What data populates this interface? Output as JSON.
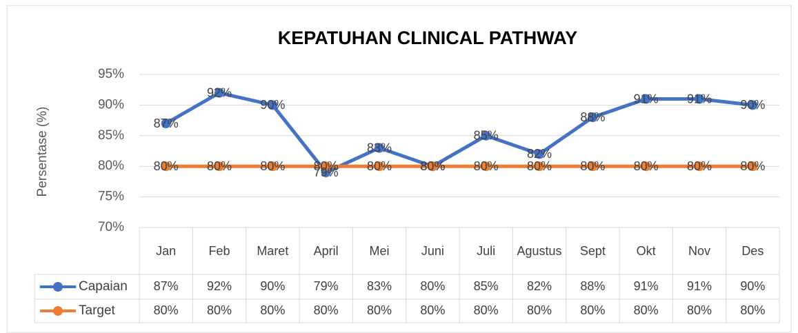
{
  "chart_data": {
    "type": "line",
    "title": "KEPATUHAN CLINICAL PATHWAY",
    "y_label": "Persentase (%)",
    "categories": [
      "Jan",
      "Feb",
      "Maret",
      "April",
      "Mei",
      "Juni",
      "Juli",
      "Agustus",
      "Sept",
      "Okt",
      "Nov",
      "Des"
    ],
    "series": [
      {
        "name": "Capaian",
        "color": "#4472c4",
        "values": [
          87,
          92,
          90,
          79,
          83,
          80,
          85,
          82,
          88,
          91,
          91,
          90
        ],
        "value_labels": [
          "87%",
          "92%",
          "90%",
          "79%",
          "83%",
          "80%",
          "85%",
          "82%",
          "88%",
          "91%",
          "91%",
          "90%"
        ]
      },
      {
        "name": "Target",
        "color": "#ed7d31",
        "values": [
          80,
          80,
          80,
          80,
          80,
          80,
          80,
          80,
          80,
          80,
          80,
          80
        ],
        "value_labels": [
          "80%",
          "80%",
          "80%",
          "80%",
          "80%",
          "80%",
          "80%",
          "80%",
          "80%",
          "80%",
          "80%",
          "80%"
        ]
      }
    ],
    "ylim": [
      70,
      95
    ],
    "yticks": [
      {
        "value": 70,
        "label": "70%"
      },
      {
        "value": 75,
        "label": "75%"
      },
      {
        "value": 80,
        "label": "80%"
      },
      {
        "value": 85,
        "label": "85%"
      },
      {
        "value": 90,
        "label": "90%"
      },
      {
        "value": 95,
        "label": "95%"
      }
    ],
    "grid": true,
    "data_table": true
  }
}
